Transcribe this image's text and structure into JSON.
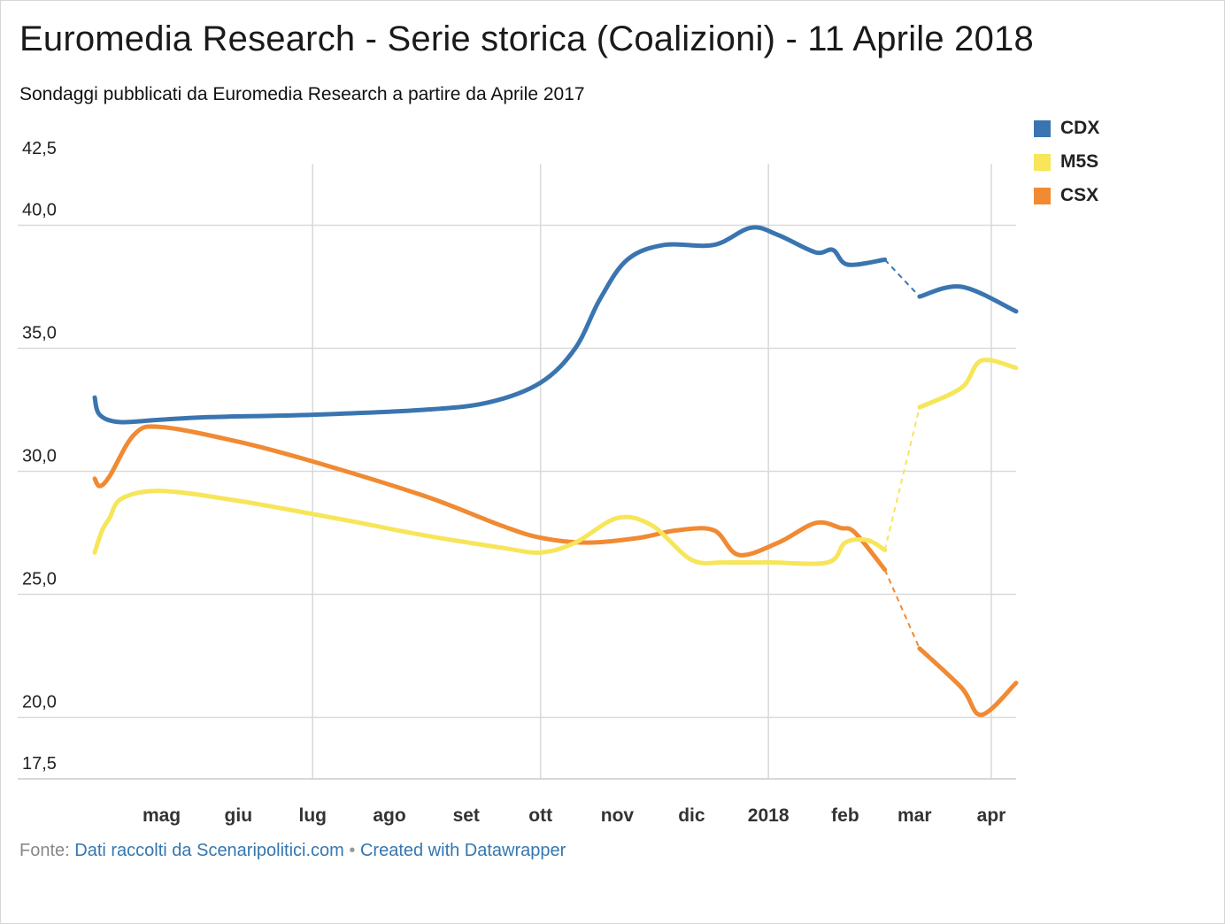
{
  "title": "Euromedia Research - Serie storica (Coalizioni) - 11 Aprile 2018",
  "subtitle": "Sondaggi pubblicati da Euromedia Research a partire da Aprile 2017",
  "source": {
    "label": "Fonte:",
    "link_text": "Dati raccolti da Scenaripolitici.com",
    "separator": "•",
    "credit_text": "Created with Datawrapper"
  },
  "legend": [
    {
      "name": "CDX",
      "color": "#3a75b0"
    },
    {
      "name": "M5S",
      "color": "#f7e55a"
    },
    {
      "name": "CSX",
      "color": "#f08a33"
    }
  ],
  "chart_data": {
    "type": "line",
    "title": "Euromedia Research - Serie storica (Coalizioni) - 11 Aprile 2018",
    "xlabel": "",
    "ylabel": "",
    "xlim": [
      "2017-04-04",
      "2018-04-11"
    ],
    "ylim": [
      17.5,
      42.5
    ],
    "yticks": [
      17.5,
      20,
      25,
      30,
      35,
      40,
      42.5
    ],
    "ytick_labels": [
      "17,5",
      "20,0",
      "25,0",
      "30,0",
      "35,0",
      "40,0",
      "42,5"
    ],
    "ytick_gridlines": [
      20,
      25,
      30,
      35,
      40
    ],
    "xticks": [
      {
        "date": "2017-05-01",
        "label": "mag"
      },
      {
        "date": "2017-06-01",
        "label": "giu"
      },
      {
        "date": "2017-07-01",
        "label": "lug"
      },
      {
        "date": "2017-08-01",
        "label": "ago"
      },
      {
        "date": "2017-09-01",
        "label": "set"
      },
      {
        "date": "2017-10-01",
        "label": "ott"
      },
      {
        "date": "2017-11-01",
        "label": "nov"
      },
      {
        "date": "2017-12-01",
        "label": "dic"
      },
      {
        "date": "2018-01-01",
        "label": "2018"
      },
      {
        "date": "2018-02-01",
        "label": "feb"
      },
      {
        "date": "2018-03-01",
        "label": "mar"
      },
      {
        "date": "2018-04-01",
        "label": "apr"
      }
    ],
    "x_gridlines": [
      "2017-07-01",
      "2017-10-01",
      "2018-01-01",
      "2018-04-01"
    ],
    "grid": true,
    "legend_position": "top-right",
    "dashed_segment": {
      "from": "2018-02-17",
      "to": "2018-03-03"
    },
    "series": [
      {
        "name": "CDX",
        "color": "#3a75b0",
        "points": [
          [
            "2017-04-04",
            33.0
          ],
          [
            "2017-04-06",
            32.3
          ],
          [
            "2017-04-14",
            32.0
          ],
          [
            "2017-05-01",
            32.1
          ],
          [
            "2017-05-20",
            32.2
          ],
          [
            "2017-07-01",
            32.3
          ],
          [
            "2017-08-15",
            32.5
          ],
          [
            "2017-09-10",
            32.8
          ],
          [
            "2017-10-01",
            33.6
          ],
          [
            "2017-10-15",
            35.0
          ],
          [
            "2017-10-25",
            37.0
          ],
          [
            "2017-11-05",
            38.6
          ],
          [
            "2017-11-20",
            39.2
          ],
          [
            "2017-12-10",
            39.2
          ],
          [
            "2017-12-25",
            39.9
          ],
          [
            "2018-01-05",
            39.6
          ],
          [
            "2018-01-20",
            38.9
          ],
          [
            "2018-01-27",
            39.0
          ],
          [
            "2018-02-02",
            38.4
          ],
          [
            "2018-02-17",
            38.6
          ],
          [
            "2018-03-03",
            37.1
          ],
          [
            "2018-03-20",
            37.5
          ],
          [
            "2018-04-11",
            36.5
          ]
        ]
      },
      {
        "name": "M5S",
        "color": "#f7e55a",
        "points": [
          [
            "2017-04-04",
            26.7
          ],
          [
            "2017-04-07",
            27.6
          ],
          [
            "2017-04-10",
            28.1
          ],
          [
            "2017-04-15",
            28.9
          ],
          [
            "2017-05-01",
            29.2
          ],
          [
            "2017-06-01",
            28.8
          ],
          [
            "2017-07-15",
            28.0
          ],
          [
            "2017-08-15",
            27.4
          ],
          [
            "2017-09-15",
            26.9
          ],
          [
            "2017-10-01",
            26.7
          ],
          [
            "2017-10-15",
            27.1
          ],
          [
            "2017-11-01",
            28.1
          ],
          [
            "2017-11-15",
            27.8
          ],
          [
            "2017-12-01",
            26.4
          ],
          [
            "2017-12-15",
            26.3
          ],
          [
            "2018-01-01",
            26.3
          ],
          [
            "2018-01-25",
            26.3
          ],
          [
            "2018-02-01",
            27.1
          ],
          [
            "2018-02-10",
            27.2
          ],
          [
            "2018-02-17",
            26.8
          ],
          [
            "2018-03-03",
            32.6
          ],
          [
            "2018-03-20",
            33.4
          ],
          [
            "2018-03-28",
            34.5
          ],
          [
            "2018-04-11",
            34.2
          ]
        ]
      },
      {
        "name": "CSX",
        "color": "#f08a33",
        "points": [
          [
            "2017-04-04",
            29.7
          ],
          [
            "2017-04-06",
            29.4
          ],
          [
            "2017-04-10",
            29.8
          ],
          [
            "2017-04-20",
            31.5
          ],
          [
            "2017-05-01",
            31.8
          ],
          [
            "2017-06-01",
            31.2
          ],
          [
            "2017-07-01",
            30.4
          ],
          [
            "2017-08-15",
            29.0
          ],
          [
            "2017-09-15",
            27.8
          ],
          [
            "2017-10-01",
            27.3
          ],
          [
            "2017-10-20",
            27.1
          ],
          [
            "2017-11-10",
            27.3
          ],
          [
            "2017-11-25",
            27.6
          ],
          [
            "2017-12-10",
            27.6
          ],
          [
            "2017-12-20",
            26.6
          ],
          [
            "2018-01-05",
            27.1
          ],
          [
            "2018-01-20",
            27.9
          ],
          [
            "2018-01-30",
            27.7
          ],
          [
            "2018-02-05",
            27.5
          ],
          [
            "2018-02-17",
            26.0
          ],
          [
            "2018-03-03",
            22.8
          ],
          [
            "2018-03-20",
            21.2
          ],
          [
            "2018-03-28",
            20.1
          ],
          [
            "2018-04-11",
            21.4
          ]
        ]
      }
    ]
  }
}
